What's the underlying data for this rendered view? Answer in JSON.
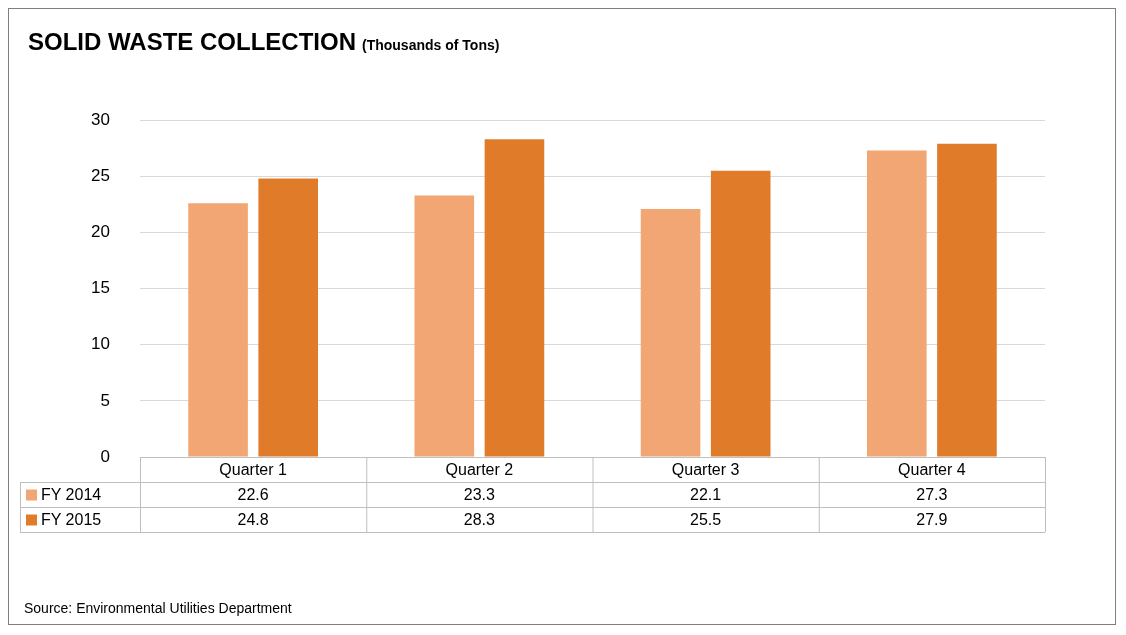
{
  "chart_data": {
    "type": "bar",
    "title": "SOLID WASTE COLLECTION",
    "subtitle": "(Thousands of Tons)",
    "categories": [
      "Quarter 1",
      "Quarter 2",
      "Quarter 3",
      "Quarter 4"
    ],
    "series": [
      {
        "name": "FY 2014",
        "color": "#f2a673",
        "values": [
          22.6,
          23.3,
          22.1,
          27.3
        ]
      },
      {
        "name": "FY 2015",
        "color": "#e07b2a",
        "values": [
          24.8,
          28.3,
          25.5,
          27.9
        ]
      }
    ],
    "ylim": [
      0,
      30
    ],
    "yticks": [
      0,
      5,
      10,
      15,
      20,
      25,
      30
    ],
    "grid": "y",
    "legend": "bottom",
    "data_labels": true,
    "annotations": [
      "Source: Environmental Utilities Department"
    ]
  }
}
